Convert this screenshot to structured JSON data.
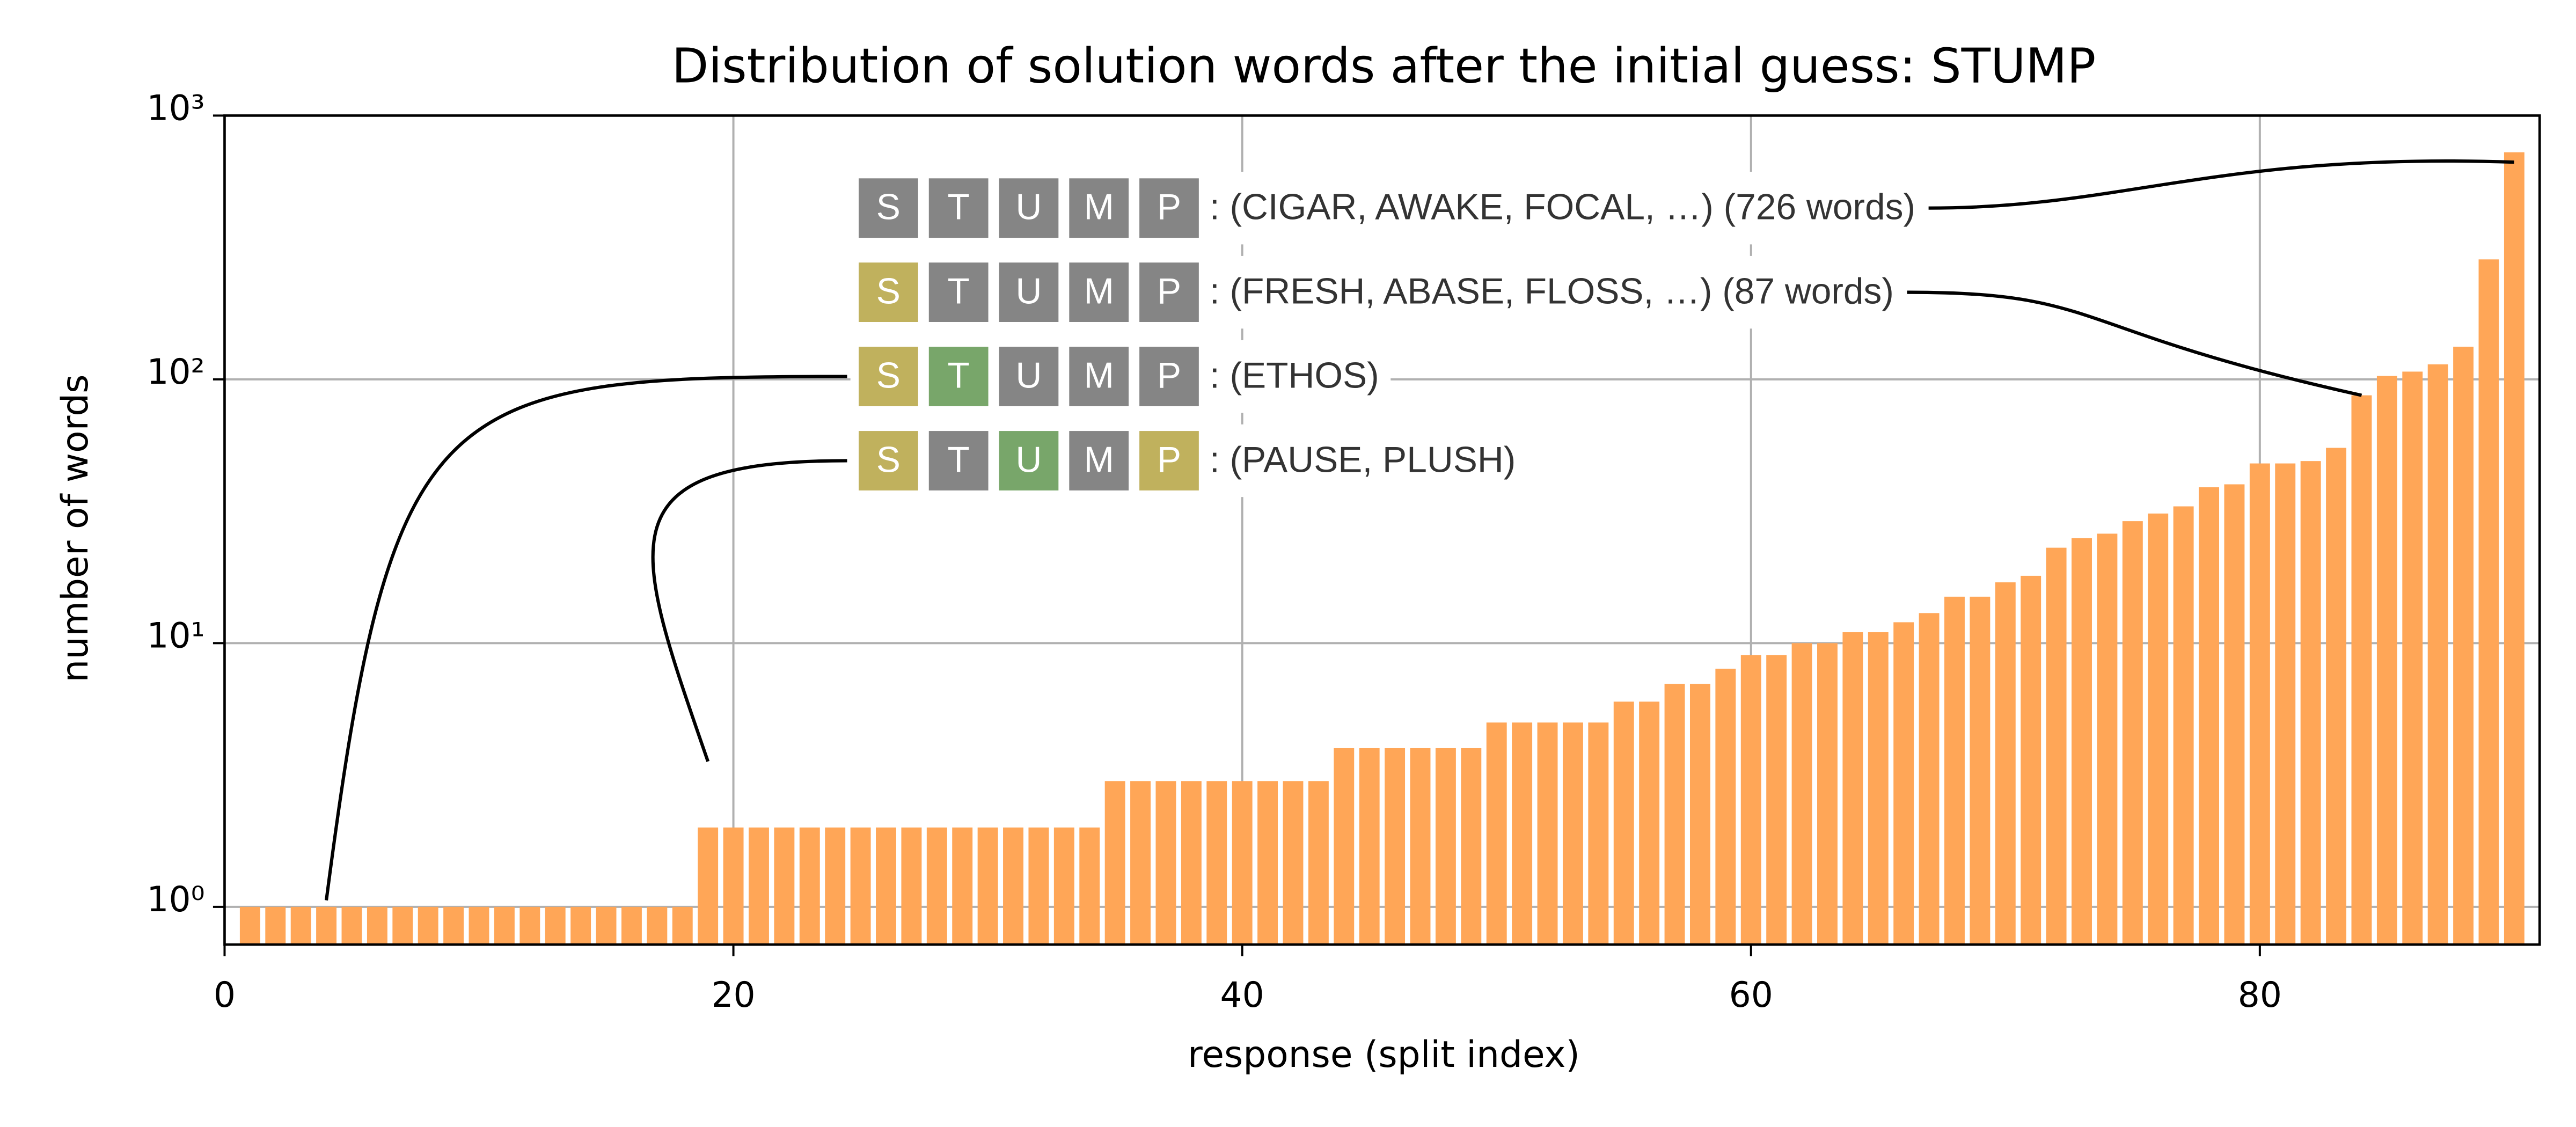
{
  "chart_data": {
    "type": "bar",
    "title": "Distribution of solution words after the initial guess: STUMP",
    "x_label": "response (split index)",
    "y_label": "number of words",
    "x": [
      1,
      2,
      3,
      4,
      5,
      6,
      7,
      8,
      9,
      10,
      11,
      12,
      13,
      14,
      15,
      16,
      17,
      18,
      19,
      20,
      21,
      22,
      23,
      24,
      25,
      26,
      27,
      28,
      29,
      30,
      31,
      32,
      33,
      34,
      35,
      36,
      37,
      38,
      39,
      40,
      41,
      42,
      43,
      44,
      45,
      46,
      47,
      48,
      49,
      50,
      51,
      52,
      53,
      54,
      55,
      56,
      57,
      58,
      59,
      60,
      61,
      62,
      63,
      64,
      65,
      66,
      67,
      68,
      69,
      70,
      71,
      72,
      73,
      74,
      75,
      76,
      77,
      78,
      79,
      80,
      81,
      82,
      83,
      84,
      85,
      86,
      87,
      88,
      89,
      90
    ],
    "values": [
      1,
      1,
      1,
      1,
      1,
      1,
      1,
      1,
      1,
      1,
      1,
      1,
      1,
      1,
      1,
      1,
      1,
      1,
      2,
      2,
      2,
      2,
      2,
      2,
      2,
      2,
      2,
      2,
      2,
      2,
      2,
      2,
      2,
      2,
      3,
      3,
      3,
      3,
      3,
      3,
      3,
      3,
      3,
      4,
      4,
      4,
      4,
      4,
      4,
      5,
      5,
      5,
      5,
      5,
      6,
      6,
      7,
      7,
      8,
      9,
      9,
      10,
      10,
      11,
      11,
      12,
      13,
      15,
      15,
      17,
      18,
      23,
      25,
      26,
      29,
      31,
      33,
      39,
      40,
      48,
      48,
      49,
      55,
      87,
      103,
      107,
      114,
      133,
      285,
      726
    ],
    "color": "#ffa657",
    "xlim": [
      0,
      91
    ],
    "ylim": [
      0.72,
      1000
    ],
    "yscale": "log",
    "xticks": [
      0,
      20,
      40,
      60,
      80
    ],
    "yticks": [
      {
        "value": 1,
        "label": "10⁰"
      },
      {
        "value": 10,
        "label": "10¹"
      },
      {
        "value": 100,
        "label": "10²"
      },
      {
        "value": 1000,
        "label": "10³"
      }
    ],
    "grid": true,
    "annotations": [
      {
        "tiles": [
          "S",
          "T",
          "U",
          "M",
          "P"
        ],
        "tile_colors": [
          "#858585",
          "#858585",
          "#858585",
          "#858585",
          "#858585"
        ],
        "text": ": (CIGAR, AWAKE, FOCAL, …) (726 words)",
        "xy": [
          90,
          726
        ]
      },
      {
        "tiles": [
          "S",
          "T",
          "U",
          "M",
          "P"
        ],
        "tile_colors": [
          "#c0b15d",
          "#858585",
          "#858585",
          "#858585",
          "#858585"
        ],
        "text": ": (FRESH, ABASE, FLOSS, …) (87 words)",
        "xy": [
          84,
          87
        ]
      },
      {
        "tiles": [
          "S",
          "T",
          "U",
          "M",
          "P"
        ],
        "tile_colors": [
          "#c0b15d",
          "#78a66a",
          "#858585",
          "#858585",
          "#858585"
        ],
        "text": ": (ETHOS)",
        "xy": [
          4,
          1
        ]
      },
      {
        "tiles": [
          "S",
          "T",
          "U",
          "M",
          "P"
        ],
        "tile_colors": [
          "#c0b15d",
          "#858585",
          "#78a66a",
          "#858585",
          "#c0b15d"
        ],
        "text": ": (PAUSE, PLUSH)",
        "xy": [
          19,
          2
        ]
      }
    ]
  }
}
